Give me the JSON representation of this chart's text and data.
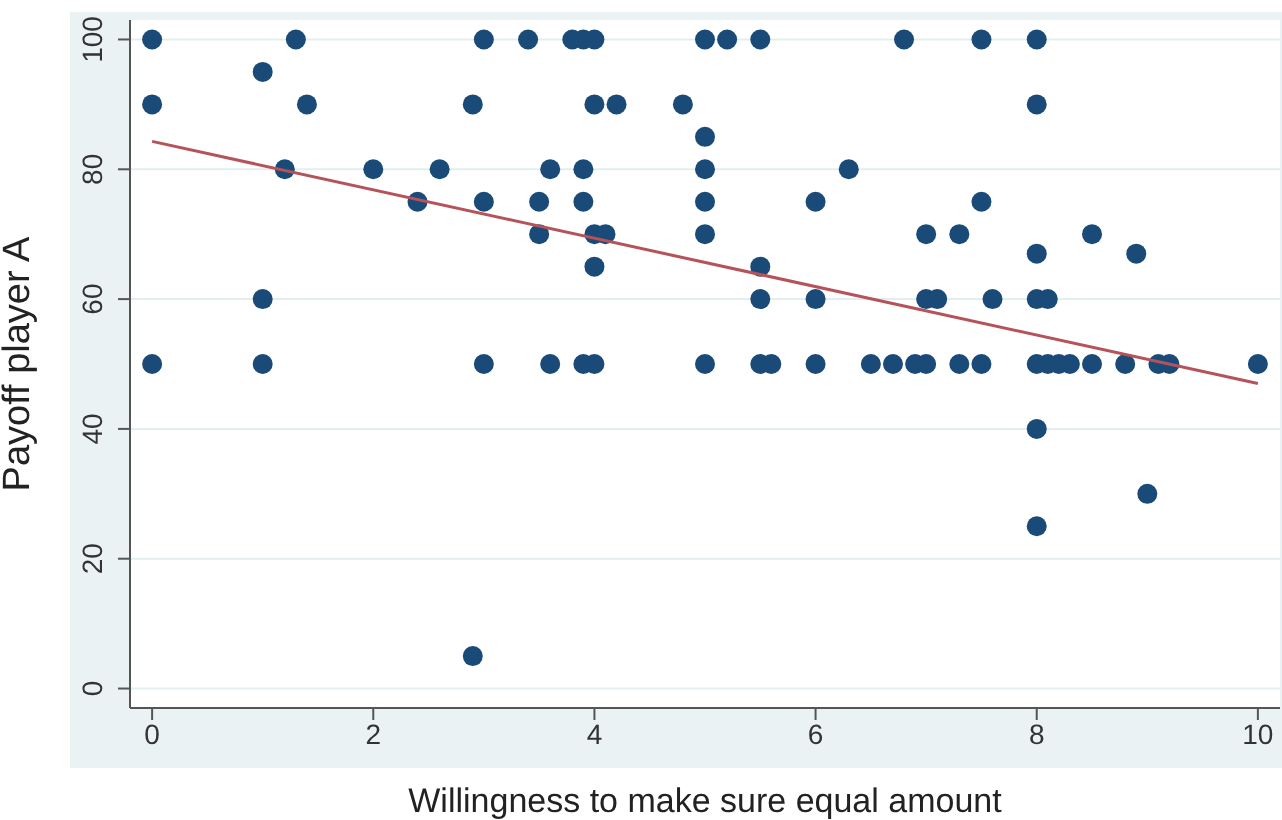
{
  "chart_data": {
    "type": "scatter",
    "xlabel": "Willingness to make sure equal amount",
    "ylabel": "Payoff player A",
    "xlim": [
      -0.2,
      10.2
    ],
    "ylim": [
      -3,
      103
    ],
    "xticks": [
      0,
      2,
      4,
      6,
      8,
      10
    ],
    "yticks": [
      0,
      20,
      40,
      60,
      80,
      100
    ],
    "grid": "y",
    "legend": false,
    "series": [
      {
        "marker": "circle",
        "color": "#1a4a78",
        "x": [
          0,
          1.3,
          3.0,
          3.4,
          3.8,
          3.9,
          4.0,
          5.0,
          5.2,
          5.5,
          6.8,
          7.5,
          8.0,
          1.0,
          0,
          1.4,
          2.9,
          4.0,
          4.2,
          4.8,
          8.0,
          5.0,
          1.2,
          2.0,
          2.6,
          3.6,
          3.9,
          5.0,
          6.3,
          2.4,
          3.0,
          3.5,
          3.9,
          5.0,
          6.0,
          7.5,
          3.5,
          4.0,
          4.1,
          5.0,
          7.0,
          7.3,
          8.5,
          8.0,
          8.9,
          4.0,
          5.5,
          1.0,
          5.5,
          6.0,
          7.0,
          7.1,
          7.6,
          8.0,
          8.1,
          0,
          1.0,
          3.0,
          3.6,
          3.9,
          4.0,
          5.0,
          5.5,
          5.6,
          6.0,
          6.5,
          6.7,
          6.9,
          7.0,
          7.3,
          7.5,
          8.0,
          8.1,
          8.2,
          8.3,
          8.5,
          8.8,
          9.1,
          9.2,
          10,
          8.0,
          9.0,
          8.0,
          2.9
        ],
        "values": [
          100,
          100,
          100,
          100,
          100,
          100,
          100,
          100,
          100,
          100,
          100,
          100,
          100,
          95,
          90,
          90,
          90,
          90,
          90,
          90,
          90,
          85,
          80,
          80,
          80,
          80,
          80,
          80,
          80,
          75,
          75,
          75,
          75,
          75,
          75,
          75,
          70,
          70,
          70,
          70,
          70,
          70,
          70,
          67,
          67,
          65,
          65,
          60,
          60,
          60,
          60,
          60,
          60,
          60,
          60,
          50,
          50,
          50,
          50,
          50,
          50,
          50,
          50,
          50,
          50,
          50,
          50,
          50,
          50,
          50,
          50,
          50,
          50,
          50,
          50,
          50,
          50,
          50,
          50,
          50,
          40,
          30,
          25,
          5
        ]
      },
      {
        "type": "line",
        "marker": "none",
        "color": "#b5525a",
        "x": [
          0,
          10
        ],
        "values": [
          84.3,
          47
        ]
      }
    ]
  }
}
